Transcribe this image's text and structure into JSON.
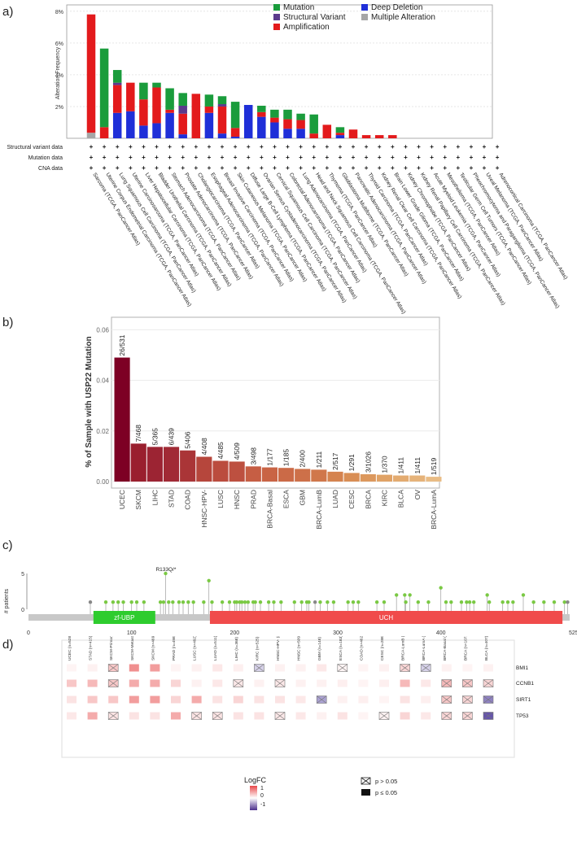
{
  "panel_labels": {
    "a": "a)",
    "b": "b)",
    "c": "c)",
    "d": "d)"
  },
  "colors": {
    "mutation": "#1a9c3c",
    "structural_variant": "#5b3a8c",
    "amplification": "#e31a1c",
    "deep_deletion": "#1f2fd8",
    "multiple_alteration": "#a6a6a6",
    "lollipop": "#7ac943",
    "zf_ubp": "#2ecc2e",
    "uch": "#f04b4b",
    "protein_bar": "#c8c8c8"
  },
  "panel_a": {
    "ylabel": "Alteration Frequency",
    "yticks": [
      "2%",
      "4%",
      "6%",
      "8%"
    ],
    "row_labels": [
      "Structural variant data",
      "Mutation data",
      "CNA data"
    ],
    "row_marker": "+",
    "legend": [
      {
        "key": "mutation",
        "label": "Mutation"
      },
      {
        "key": "deep_deletion",
        "label": "Deep Deletion"
      },
      {
        "key": "structural_variant",
        "label": "Structural Variant"
      },
      {
        "key": "multiple_alteration",
        "label": "Multiple Alteration"
      },
      {
        "key": "amplification",
        "label": "Amplification"
      }
    ]
  },
  "chart_data": [
    {
      "type": "bar",
      "ylabel": "Alteration Frequency",
      "ylim": [
        0,
        8.4
      ],
      "categories": [
        "Sarcoma (TCGA, PanCancer Atlas)",
        "Uterine Corpus Endometrial Carcinoma (TCGA, PanCancer Atlas)",
        "Lung Squamous Cell Carcinoma (TCGA, PanCancer Atlas)",
        "Uterine Carcinosarcoma (TCGA, PanCancer Atlas)",
        "Liver Hepatocellular Carcinoma (TCGA, PanCancer Atlas)",
        "Bladder Urothelial Carcinoma (TCGA, PanCancer Atlas)",
        "Stomach Adenocarcinoma (TCGA, PanCancer Atlas)",
        "Prostate Adenocarcinoma (TCGA, PanCancer Atlas)",
        "Cholangiocarcinoma (TCGA, PanCancer Atlas)",
        "Esophageal Adenocarcinoma (TCGA, PanCancer Atlas)",
        "Breast Invasive Carcinoma (TCGA, PanCancer Atlas)",
        "Skin Cutaneous Melanoma (TCGA, PanCancer Atlas)",
        "Diffuse Large B-Cell Lymphoma (TCGA, PanCancer Atlas)",
        "Ovarian Serous Cystadenocarcinoma (TCGA, PanCancer Atlas)",
        "Cervical Squamous Cell Carcinoma (TCGA, PanCancer Atlas)",
        "Colorectal Adenocarcinoma (TCGA, PanCancer Atlas)",
        "Lung Adenocarcinoma (TCGA, PanCancer Atlas)",
        "Head and Neck Squamous Cell Carcinoma (TCGA, PanCancer Atlas)",
        "Thymoma (TCGA, PanCancer Atlas)",
        "Glioblastoma Multiforme (TCGA, PanCancer Atlas)",
        "Pancreatic Adenocarcinoma (TCGA, PanCancer Atlas)",
        "Thyroid Carcinoma (TCGA, PanCancer Atlas)",
        "Kidney Renal Clear Cell Carcinoma (TCGA, PanCancer Atlas)",
        "Brain Lower Grade Glioma (TCGA, PanCancer Atlas)",
        "Kidney Chromophobe (TCGA, PanCancer Atlas)",
        "Kidney Renal Papillary Cell Carcinoma (TCGA, PanCancer Atlas)",
        "Acute Myeloid Leukemia (TCGA, PanCancer Atlas)",
        "Mesothelioma (TCGA, PanCancer Atlas)",
        "Testicular Germ Cell Tumors (TCGA, PanCancer Atlas)",
        "Pheochromocytoma and Paraganglioma (TCGA, PanCancer Atlas)",
        "Uveal Melanoma (TCGA, PanCancer Atlas)",
        "Adrenocortical Carcinoma (TCGA, PanCancer Atlas)"
      ],
      "series": [
        {
          "name": "Multiple Alteration",
          "key": "multiple_alteration",
          "values": [
            0.35,
            0,
            0,
            0,
            0,
            0,
            0,
            0,
            0,
            0,
            0,
            0,
            0,
            0,
            0,
            0,
            0,
            0,
            0,
            0,
            0,
            0,
            0,
            0,
            0,
            0,
            0,
            0,
            0,
            0,
            0,
            0
          ]
        },
        {
          "name": "Deep Deletion",
          "key": "deep_deletion",
          "values": [
            0,
            0,
            1.6,
            1.7,
            0.8,
            0.95,
            1.6,
            0.25,
            0,
            1.6,
            0.3,
            0.1,
            2.1,
            1.35,
            1.0,
            0.6,
            0.6,
            0,
            0,
            0.2,
            0,
            0,
            0,
            0,
            0,
            0,
            0,
            0,
            0,
            0,
            0,
            0
          ]
        },
        {
          "name": "Amplification",
          "key": "amplification",
          "values": [
            7.45,
            0.7,
            1.75,
            1.8,
            1.65,
            2.25,
            0.2,
            1.3,
            2.8,
            0.4,
            1.7,
            0.55,
            0,
            0.3,
            0.3,
            0.6,
            0.55,
            0.3,
            0.85,
            0.15,
            0.55,
            0.2,
            0.2,
            0.2,
            0,
            0,
            0,
            0,
            0,
            0,
            0,
            0
          ]
        },
        {
          "name": "Structural Variant",
          "key": "structural_variant",
          "values": [
            0,
            0,
            0.15,
            0,
            0,
            0,
            0,
            0.5,
            0,
            0,
            0.15,
            0,
            0,
            0,
            0,
            0,
            0,
            0,
            0,
            0,
            0,
            0,
            0,
            0,
            0,
            0,
            0,
            0,
            0,
            0,
            0,
            0
          ]
        },
        {
          "name": "Mutation",
          "key": "mutation",
          "values": [
            0,
            4.95,
            0.8,
            0,
            1.05,
            0.3,
            1.35,
            0.8,
            0,
            0.75,
            0.5,
            1.65,
            0,
            0.4,
            0.5,
            0.6,
            0.4,
            1.2,
            0,
            0.35,
            0,
            0,
            0,
            0,
            0,
            0,
            0,
            0,
            0,
            0,
            0,
            0
          ]
        }
      ]
    },
    {
      "type": "bar",
      "ylabel": "% of Sample with USP22 Mutation",
      "ylim": [
        0,
        0.063
      ],
      "yticks": [
        0.0,
        0.02,
        0.04,
        0.06
      ],
      "categories": [
        "UCEC",
        "SKCM",
        "LIHC",
        "STAD",
        "COAD",
        "HNSC-HPV-",
        "LUSC",
        "HNSC",
        "PRAD",
        "BRCA-Basal",
        "ESCA",
        "GBM",
        "BRCA-LumB",
        "LUAD",
        "CESC",
        "BRCA",
        "KIRC",
        "BLCA",
        "OV",
        "BRCA-LumA"
      ],
      "values": [
        0.049,
        0.015,
        0.0137,
        0.0137,
        0.0123,
        0.0098,
        0.0082,
        0.0079,
        0.006,
        0.0056,
        0.0054,
        0.005,
        0.0047,
        0.0039,
        0.0034,
        0.0029,
        0.0027,
        0.0024,
        0.0024,
        0.0019
      ],
      "data_labels": [
        "26/531",
        "7/468",
        "5/365",
        "6/439",
        "5/406",
        "4/408",
        "4/485",
        "4/509",
        "3/498",
        "1/177",
        "1/185",
        "2/400",
        "1/211",
        "2/517",
        "1/291",
        "3/1026",
        "1/370",
        "1/411",
        "1/411",
        "1/519"
      ],
      "colors": [
        "#7d0024",
        "#9a1f2e",
        "#9c2433",
        "#a12a35",
        "#aa3537",
        "#b6463c",
        "#bb4c3e",
        "#bd5040",
        "#c65e44",
        "#c96445",
        "#cb6a47",
        "#cd7049",
        "#d0774b",
        "#d5834f",
        "#d98e55",
        "#dc985d",
        "#e0a266",
        "#e3ab70",
        "#e6b37a",
        "#e9bc85"
      ]
    },
    {
      "type": "scatter",
      "title": "",
      "ylabel": "# patients",
      "xlim": [
        0,
        525
      ],
      "ylim": [
        0,
        5
      ],
      "xticks": [
        0,
        100,
        200,
        300,
        400
      ],
      "xmax_label": "525aa",
      "yticks": [
        0,
        5
      ],
      "annotation": "R133Q/*",
      "domains": [
        {
          "name": "zf-UBP",
          "start": 63,
          "end": 123
        },
        {
          "name": "UCH",
          "start": 176,
          "end": 518
        }
      ],
      "x": [
        60,
        75,
        82,
        87,
        92,
        100,
        105,
        112,
        128,
        131,
        133,
        136,
        140,
        146,
        150,
        155,
        160,
        170,
        175,
        178,
        188,
        195,
        200,
        202,
        205,
        207,
        210,
        213,
        218,
        220,
        225,
        233,
        238,
        245,
        258,
        265,
        270,
        272,
        278,
        283,
        290,
        296,
        310,
        315,
        320,
        338,
        345,
        357,
        365,
        366,
        370,
        378,
        388,
        400,
        405,
        410,
        420,
        425,
        428,
        432,
        445,
        447,
        460,
        465,
        470,
        480,
        490,
        500,
        510,
        520,
        523
      ],
      "y": [
        1,
        1,
        1,
        1,
        1,
        1,
        1,
        1,
        1,
        1,
        5,
        1,
        1,
        1,
        1,
        1,
        1,
        1,
        4,
        1,
        1,
        1,
        1,
        1,
        1,
        1,
        1,
        1,
        1,
        1,
        1,
        1,
        1,
        1,
        1,
        1,
        1,
        1,
        1,
        1,
        1,
        1,
        1,
        1,
        1,
        1,
        1,
        2,
        2,
        1,
        2,
        1,
        1,
        3,
        1,
        1,
        1,
        1,
        1,
        1,
        2,
        1,
        1,
        1,
        1,
        2,
        1,
        1,
        1,
        1,
        1
      ]
    },
    {
      "type": "heatmap",
      "legend_title": "LogFC",
      "legend_ticks": [
        "1",
        "0",
        "-1"
      ],
      "sig_legend": [
        "p > 0.05",
        "p ≤ 0.05"
      ],
      "columns": [
        "UCEC (n=528)",
        "STAD (n=415)",
        "SKCM-Primary (n=103)",
        "SKCM-Metastasis (n=368)",
        "SKCM (n=469)",
        "PRAD (n=498)",
        "LUSC (n=492)",
        "LUAD (n=511)",
        "LIHC (n=368)",
        "KIRC (n=525)",
        "HNSC-HPV- (n=408)",
        "HNSC (n=509)",
        "GBM (n=148)",
        "ESCA (n=183)",
        "COAD (n=462)",
        "CESC (n=288)",
        "BRCA-LumB (n=208)",
        "BRCA-LumA (n=516)",
        "BRCA-Basal (n=178)",
        "BRCA (n=1072)",
        "BLCA (n=407)"
      ],
      "rows": [
        "BMI1",
        "CCNB1",
        "SIRT1",
        "TP53"
      ],
      "values": [
        [
          0.04,
          0.05,
          0.2,
          0.4,
          0.35,
          0.04,
          0.05,
          0.08,
          0.06,
          -0.15,
          0.05,
          0.05,
          0.08,
          0.04,
          0.04,
          0.05,
          0.15,
          -0.15,
          0.05,
          0.04,
          0.05
        ],
        [
          0.2,
          0.25,
          0.2,
          0.3,
          0.3,
          0.15,
          0.05,
          0.08,
          0.08,
          0.05,
          0.08,
          0.05,
          0.05,
          0.06,
          0.04,
          0.06,
          0.25,
          0.08,
          0.25,
          0.2,
          0.15
        ],
        [
          0.1,
          0.2,
          0.2,
          0.35,
          0.35,
          0.15,
          0.3,
          0.1,
          0.15,
          0.1,
          0.1,
          0.08,
          -0.3,
          0.05,
          0.06,
          0.04,
          0.1,
          0.06,
          0.2,
          0.15,
          -0.4
        ],
        [
          0.08,
          0.3,
          0.1,
          0.1,
          0.1,
          0.3,
          0.1,
          0.1,
          0.1,
          0.1,
          0.08,
          0.08,
          0.05,
          0.1,
          0.04,
          0.05,
          0.15,
          0.08,
          0.15,
          0.15,
          -0.55
        ]
      ],
      "not_significant": [
        [
          0,
          0,
          1,
          0,
          0,
          0,
          0,
          0,
          0,
          1,
          0,
          0,
          0,
          1,
          0,
          0,
          1,
          1,
          0,
          0,
          0
        ],
        [
          0,
          0,
          1,
          0,
          0,
          0,
          0,
          0,
          1,
          0,
          1,
          0,
          0,
          0,
          0,
          0,
          0,
          0,
          1,
          1,
          1
        ],
        [
          0,
          0,
          0,
          0,
          0,
          0,
          0,
          0,
          0,
          0,
          0,
          0,
          1,
          0,
          0,
          0,
          0,
          0,
          1,
          1,
          1
        ],
        [
          0,
          0,
          1,
          0,
          0,
          0,
          1,
          1,
          0,
          0,
          1,
          0,
          0,
          0,
          0,
          1,
          0,
          0,
          1,
          1,
          1
        ]
      ]
    }
  ]
}
